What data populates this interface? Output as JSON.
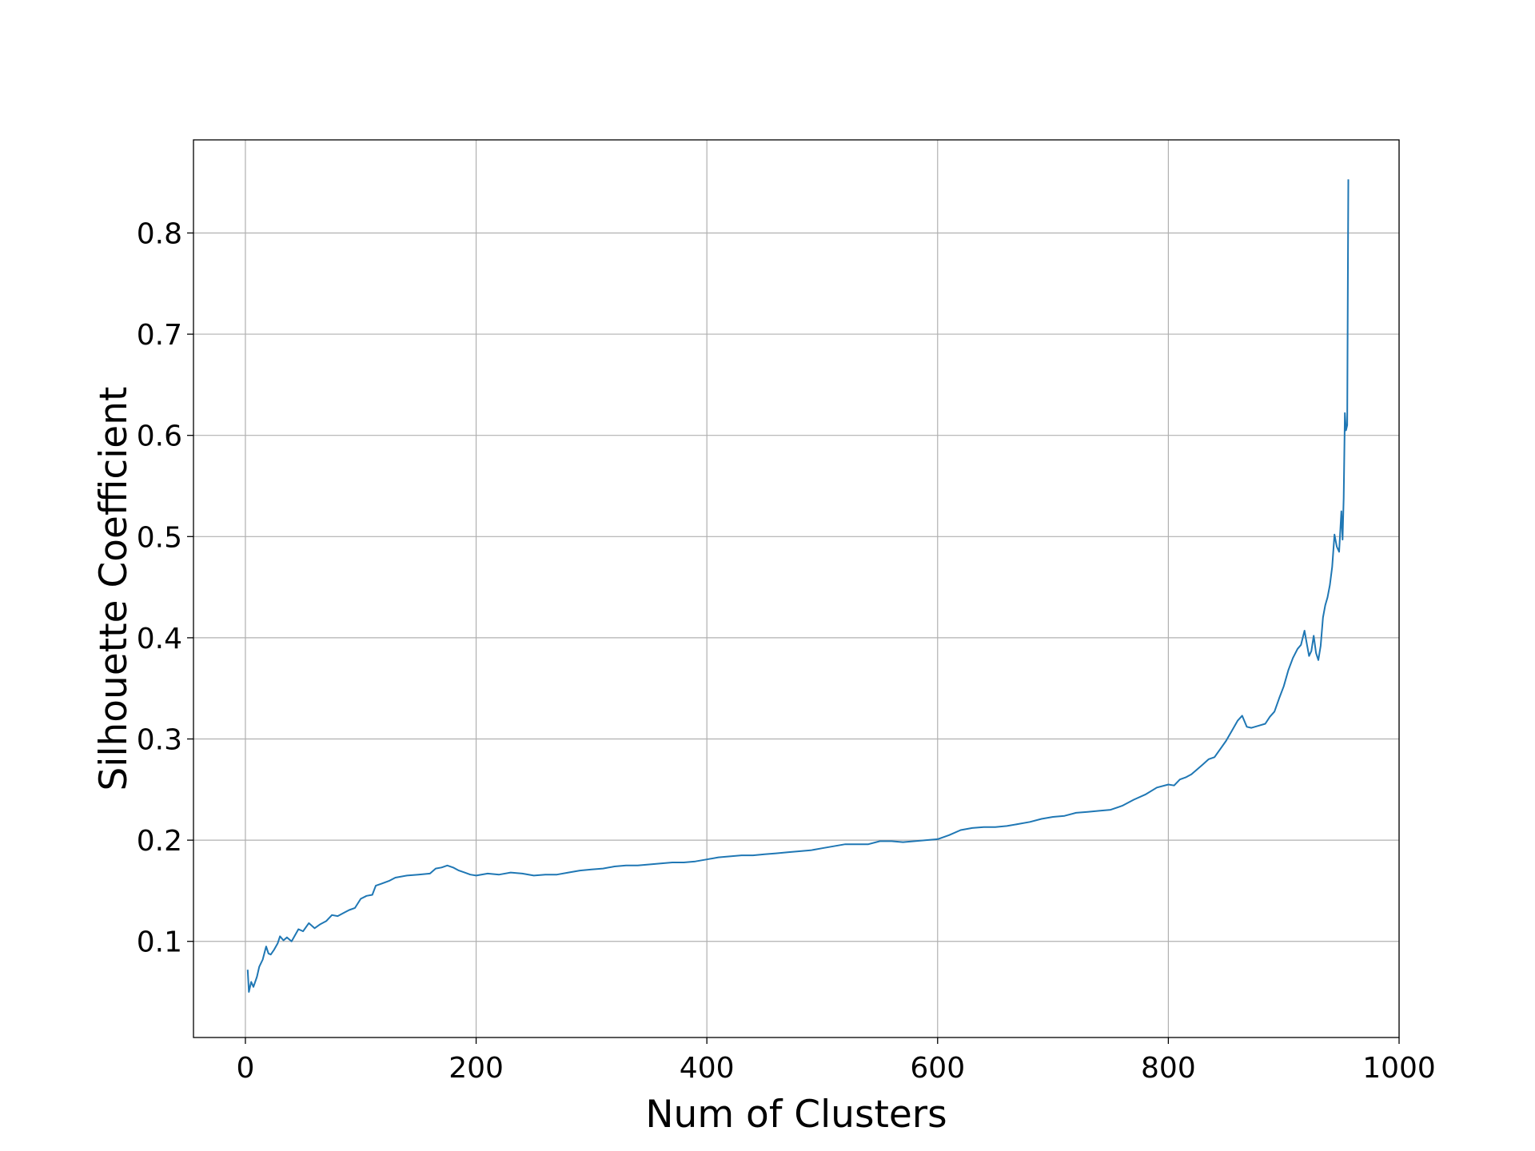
{
  "chart_data": {
    "type": "line",
    "title": "",
    "xlabel": "Num of Clusters",
    "ylabel": "Silhouette Coefficient",
    "xlim": [
      -45,
      1000
    ],
    "ylim": [
      0.005,
      0.892
    ],
    "xticks": [
      0,
      200,
      400,
      600,
      800,
      1000
    ],
    "yticks": [
      0.1,
      0.2,
      0.3,
      0.4,
      0.5,
      0.6,
      0.7,
      0.8
    ],
    "grid": true,
    "legend": "none",
    "series": [
      {
        "color": "#1f77b4",
        "points": [
          [
            2,
            0.072
          ],
          [
            3,
            0.05
          ],
          [
            5,
            0.06
          ],
          [
            7,
            0.055
          ],
          [
            10,
            0.065
          ],
          [
            12,
            0.075
          ],
          [
            15,
            0.082
          ],
          [
            18,
            0.095
          ],
          [
            20,
            0.088
          ],
          [
            22,
            0.087
          ],
          [
            25,
            0.092
          ],
          [
            28,
            0.098
          ],
          [
            30,
            0.105
          ],
          [
            33,
            0.101
          ],
          [
            36,
            0.104
          ],
          [
            40,
            0.1
          ],
          [
            43,
            0.106
          ],
          [
            46,
            0.112
          ],
          [
            50,
            0.11
          ],
          [
            55,
            0.118
          ],
          [
            60,
            0.113
          ],
          [
            65,
            0.117
          ],
          [
            70,
            0.12
          ],
          [
            75,
            0.126
          ],
          [
            80,
            0.125
          ],
          [
            85,
            0.128
          ],
          [
            90,
            0.131
          ],
          [
            95,
            0.133
          ],
          [
            100,
            0.142
          ],
          [
            105,
            0.145
          ],
          [
            110,
            0.146
          ],
          [
            113,
            0.155
          ],
          [
            118,
            0.157
          ],
          [
            125,
            0.16
          ],
          [
            130,
            0.163
          ],
          [
            140,
            0.165
          ],
          [
            150,
            0.166
          ],
          [
            160,
            0.167
          ],
          [
            165,
            0.172
          ],
          [
            170,
            0.173
          ],
          [
            175,
            0.175
          ],
          [
            180,
            0.173
          ],
          [
            185,
            0.17
          ],
          [
            190,
            0.168
          ],
          [
            195,
            0.166
          ],
          [
            200,
            0.165
          ],
          [
            210,
            0.167
          ],
          [
            220,
            0.166
          ],
          [
            230,
            0.168
          ],
          [
            240,
            0.167
          ],
          [
            250,
            0.165
          ],
          [
            260,
            0.166
          ],
          [
            270,
            0.166
          ],
          [
            280,
            0.168
          ],
          [
            290,
            0.17
          ],
          [
            300,
            0.171
          ],
          [
            310,
            0.172
          ],
          [
            320,
            0.174
          ],
          [
            330,
            0.175
          ],
          [
            340,
            0.175
          ],
          [
            350,
            0.176
          ],
          [
            360,
            0.177
          ],
          [
            370,
            0.178
          ],
          [
            380,
            0.178
          ],
          [
            390,
            0.179
          ],
          [
            400,
            0.181
          ],
          [
            410,
            0.183
          ],
          [
            420,
            0.184
          ],
          [
            430,
            0.185
          ],
          [
            440,
            0.185
          ],
          [
            450,
            0.186
          ],
          [
            460,
            0.187
          ],
          [
            470,
            0.188
          ],
          [
            480,
            0.189
          ],
          [
            490,
            0.19
          ],
          [
            500,
            0.192
          ],
          [
            510,
            0.194
          ],
          [
            520,
            0.196
          ],
          [
            530,
            0.196
          ],
          [
            540,
            0.196
          ],
          [
            550,
            0.199
          ],
          [
            560,
            0.199
          ],
          [
            570,
            0.198
          ],
          [
            580,
            0.199
          ],
          [
            590,
            0.2
          ],
          [
            600,
            0.201
          ],
          [
            610,
            0.205
          ],
          [
            620,
            0.21
          ],
          [
            630,
            0.212
          ],
          [
            640,
            0.213
          ],
          [
            650,
            0.213
          ],
          [
            660,
            0.214
          ],
          [
            670,
            0.216
          ],
          [
            680,
            0.218
          ],
          [
            690,
            0.221
          ],
          [
            700,
            0.223
          ],
          [
            710,
            0.224
          ],
          [
            720,
            0.227
          ],
          [
            730,
            0.228
          ],
          [
            740,
            0.229
          ],
          [
            750,
            0.23
          ],
          [
            760,
            0.234
          ],
          [
            770,
            0.24
          ],
          [
            780,
            0.245
          ],
          [
            790,
            0.252
          ],
          [
            800,
            0.255
          ],
          [
            805,
            0.254
          ],
          [
            810,
            0.26
          ],
          [
            815,
            0.262
          ],
          [
            820,
            0.265
          ],
          [
            825,
            0.27
          ],
          [
            830,
            0.275
          ],
          [
            835,
            0.28
          ],
          [
            840,
            0.282
          ],
          [
            845,
            0.29
          ],
          [
            850,
            0.298
          ],
          [
            855,
            0.308
          ],
          [
            860,
            0.318
          ],
          [
            864,
            0.323
          ],
          [
            868,
            0.312
          ],
          [
            872,
            0.311
          ],
          [
            878,
            0.313
          ],
          [
            884,
            0.315
          ],
          [
            888,
            0.322
          ],
          [
            892,
            0.327
          ],
          [
            896,
            0.34
          ],
          [
            900,
            0.352
          ],
          [
            904,
            0.368
          ],
          [
            908,
            0.38
          ],
          [
            912,
            0.389
          ],
          [
            915,
            0.393
          ],
          [
            918,
            0.407
          ],
          [
            920,
            0.394
          ],
          [
            922,
            0.382
          ],
          [
            924,
            0.387
          ],
          [
            926,
            0.402
          ],
          [
            928,
            0.385
          ],
          [
            930,
            0.378
          ],
          [
            932,
            0.392
          ],
          [
            934,
            0.42
          ],
          [
            936,
            0.432
          ],
          [
            938,
            0.44
          ],
          [
            940,
            0.452
          ],
          [
            942,
            0.47
          ],
          [
            944,
            0.502
          ],
          [
            946,
            0.49
          ],
          [
            948,
            0.485
          ],
          [
            950,
            0.525
          ],
          [
            951,
            0.497
          ],
          [
            952,
            0.538
          ],
          [
            953,
            0.622
          ],
          [
            954,
            0.605
          ],
          [
            955,
            0.61
          ],
          [
            956,
            0.853
          ]
        ]
      }
    ]
  }
}
